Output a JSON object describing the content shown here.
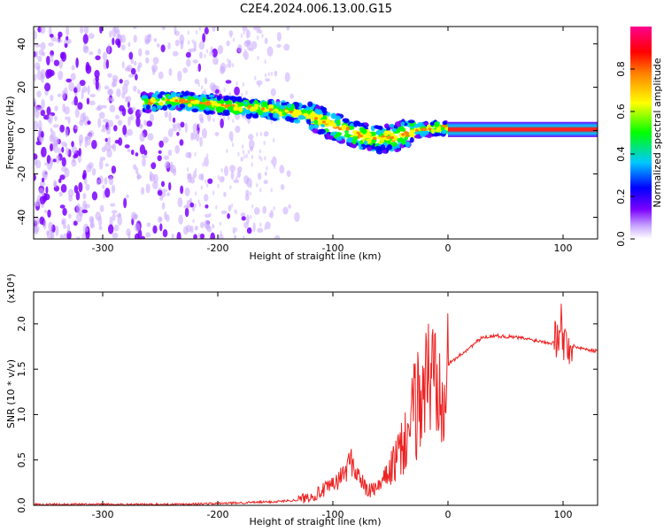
{
  "figure": {
    "title": "C2E4.2024.006.13.00.G15"
  },
  "chart_data": [
    {
      "type": "heatmap",
      "xlabel": "Height of straight line (km)",
      "ylabel": "Frequency (Hz)",
      "xlim": [
        -360,
        130
      ],
      "ylim": [
        -50,
        48
      ],
      "xticks": [
        -300,
        -200,
        -100,
        0,
        100
      ],
      "yticks": [
        40,
        20,
        0,
        -20,
        -40
      ],
      "colorbar": {
        "label": "Normalized spectral amplitude",
        "range": [
          0,
          1
        ],
        "ticks": [
          0.0,
          0.2,
          0.4,
          0.6,
          0.8
        ],
        "colormap": [
          "#7a00ff",
          "#0000ff",
          "#00c8ff",
          "#00ff00",
          "#ffff00",
          "#ff8000",
          "#ff0000",
          "#ff0090"
        ]
      },
      "ridge": [
        {
          "x": -260,
          "y": 13
        },
        {
          "x": -240,
          "y": 14
        },
        {
          "x": -220,
          "y": 13
        },
        {
          "x": -200,
          "y": 12
        },
        {
          "x": -180,
          "y": 11
        },
        {
          "x": -160,
          "y": 10
        },
        {
          "x": -140,
          "y": 9
        },
        {
          "x": -120,
          "y": 7
        },
        {
          "x": -100,
          "y": 2
        },
        {
          "x": -80,
          "y": -2
        },
        {
          "x": -60,
          "y": -4
        },
        {
          "x": -45,
          "y": -3
        },
        {
          "x": -30,
          "y": 0
        },
        {
          "x": -10,
          "y": 1
        },
        {
          "x": 0,
          "y": 1
        },
        {
          "x": 50,
          "y": 0.5
        },
        {
          "x": 100,
          "y": 0.5
        },
        {
          "x": 130,
          "y": 0.5
        }
      ]
    },
    {
      "type": "line",
      "xlabel": "Height of straight line (km)",
      "ylabel": "SNR (10 * v/v)",
      "yscale_label": "(x10⁴)",
      "xlim": [
        -360,
        130
      ],
      "ylim": [
        0,
        2.35
      ],
      "xticks": [
        -300,
        -200,
        -100,
        0,
        100
      ],
      "yticks": [
        0.0,
        0.5,
        1.0,
        1.5,
        2.0
      ],
      "series": [
        {
          "color": "#ee2222",
          "x": [
            -360,
            -300,
            -250,
            -200,
            -150,
            -130,
            -115,
            -100,
            -90,
            -85,
            -70,
            -60,
            -50,
            -40,
            -30,
            -20,
            -10,
            0,
            10,
            20,
            30,
            40,
            50,
            60,
            70,
            80,
            90,
            95,
            98,
            100,
            105,
            110,
            120,
            130
          ],
          "y": [
            0.01,
            0.01,
            0.01,
            0.02,
            0.04,
            0.06,
            0.12,
            0.22,
            0.35,
            0.5,
            0.15,
            0.2,
            0.4,
            0.6,
            1.0,
            1.35,
            1.5,
            1.55,
            1.65,
            1.75,
            1.85,
            1.87,
            1.86,
            1.85,
            1.83,
            1.81,
            1.79,
            1.85,
            2.1,
            1.8,
            1.76,
            1.75,
            1.72,
            1.7
          ]
        }
      ]
    }
  ]
}
